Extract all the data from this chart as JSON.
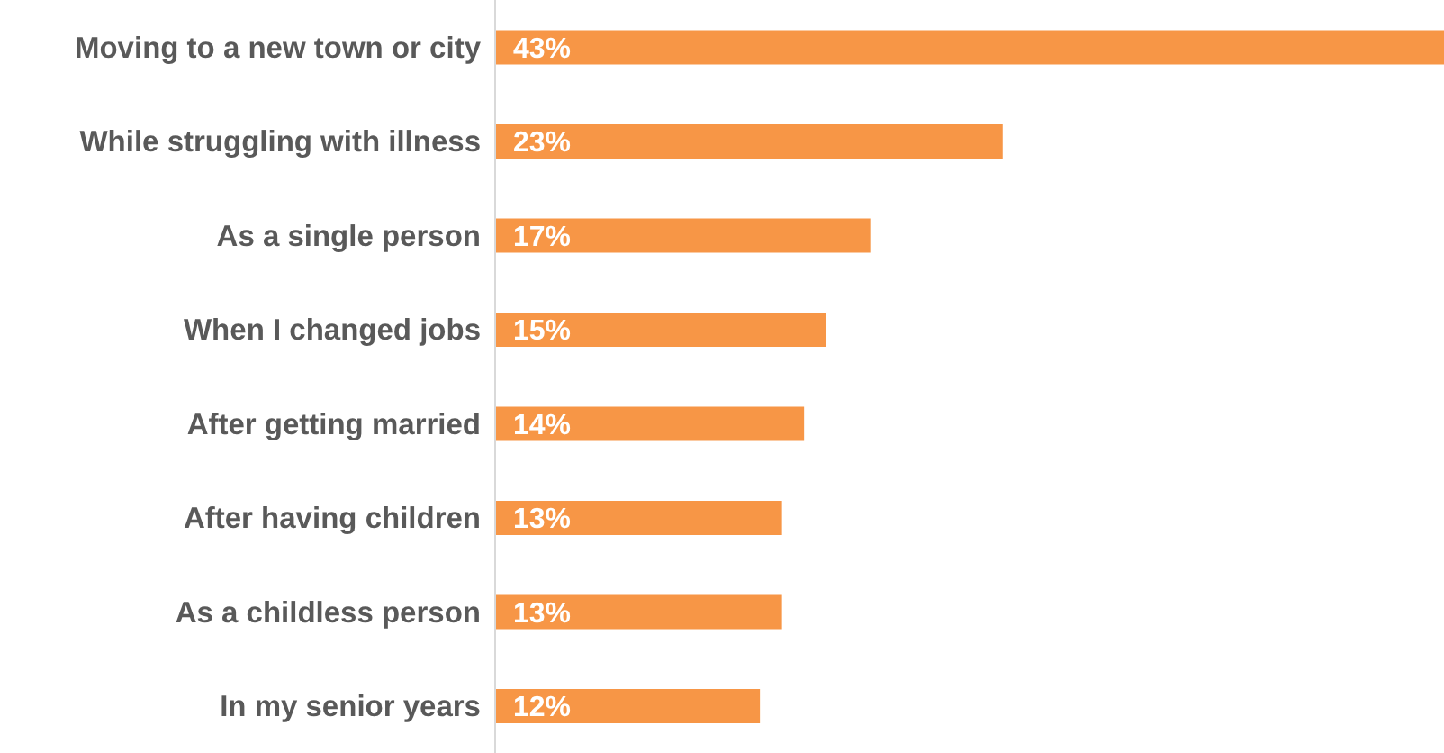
{
  "chart_data": {
    "type": "bar",
    "orientation": "horizontal",
    "categories": [
      "Moving to a new town or city",
      "While struggling with illness",
      "As a single person",
      "When I changed jobs",
      "After getting married",
      "After having children",
      "As a childless person",
      "In my senior years"
    ],
    "values": [
      43,
      23,
      17,
      15,
      14,
      13,
      13,
      12
    ],
    "value_labels": [
      "43%",
      "23%",
      "17%",
      "15%",
      "14%",
      "13%",
      "13%",
      "12%"
    ],
    "color": "#f79646"
  }
}
